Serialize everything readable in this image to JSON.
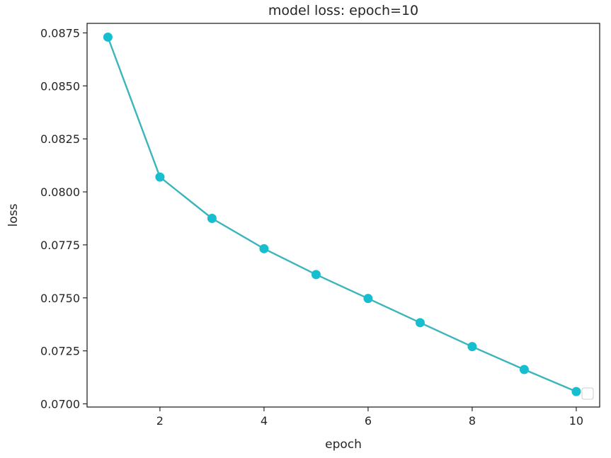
{
  "chart_data": {
    "type": "line",
    "title": "model loss: epoch=10",
    "xlabel": "epoch",
    "ylabel": "loss",
    "xlim": [
      0.6,
      10.45
    ],
    "ylim": [
      0.06985,
      0.08795
    ],
    "x_ticks": [
      2,
      4,
      6,
      8,
      10
    ],
    "y_ticks": [
      0.07,
      0.0725,
      0.075,
      0.0775,
      0.08,
      0.0825,
      0.085,
      0.0875
    ],
    "x_tick_labels": [
      "2",
      "4",
      "6",
      "8",
      "10"
    ],
    "y_tick_labels": [
      "0.0700",
      "0.0725",
      "0.0750",
      "0.0775",
      "0.0800",
      "0.0825",
      "0.0850",
      "0.0875"
    ],
    "grid": false,
    "legend": "lower-right (empty)",
    "colors": {
      "line": "#3bb5bc",
      "marker": "#17becf",
      "axis": "#262626"
    },
    "series": [
      {
        "x": [
          1,
          2,
          3,
          4,
          5,
          6,
          7,
          8,
          9,
          10
        ],
        "y": [
          0.0873,
          0.0807,
          0.07875,
          0.07732,
          0.0761,
          0.07497,
          0.07383,
          0.0727,
          0.07162,
          0.07058
        ]
      }
    ]
  }
}
